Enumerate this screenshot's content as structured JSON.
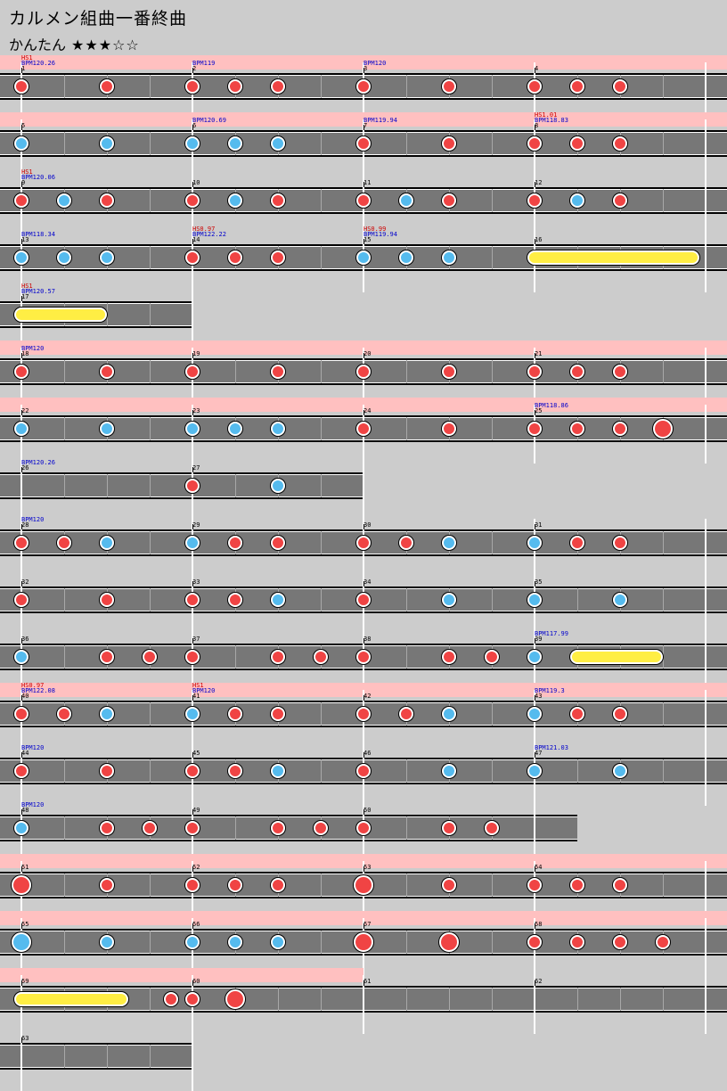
{
  "song": {
    "title": "カルメン組曲一番終曲",
    "difficulty_label": "かんたん",
    "difficulty_stars": "★★★☆☆"
  },
  "colors": {
    "don": "#f04444",
    "ka": "#55bbee",
    "roll": "#ffee44",
    "gogo_band": "#ffc0c0",
    "lane": "#777777",
    "bpm_text": "#0000cc",
    "hs_text": "#cc0000"
  },
  "rows": [
    {
      "measures": 4,
      "gogo": true,
      "markers": [
        {
          "m": 0,
          "num": "1",
          "bpm": "BPM120.26",
          "hs": "HS1"
        },
        {
          "m": 1,
          "num": "2",
          "bpm": "BPM119"
        },
        {
          "m": 2,
          "num": "3",
          "bpm": "BPM120"
        },
        {
          "m": 3,
          "num": "4"
        }
      ],
      "notes": [
        {
          "b": 0,
          "t": "d"
        },
        {
          "b": 2,
          "t": "d"
        },
        {
          "b": 4,
          "t": "d"
        },
        {
          "b": 5,
          "t": "d"
        },
        {
          "b": 6,
          "t": "d"
        },
        {
          "b": 8,
          "t": "d"
        },
        {
          "b": 10,
          "t": "d"
        },
        {
          "b": 12,
          "t": "d"
        },
        {
          "b": 13,
          "t": "d"
        },
        {
          "b": 14,
          "t": "d"
        }
      ]
    },
    {
      "measures": 4,
      "gogo": true,
      "markers": [
        {
          "m": 0,
          "num": "5"
        },
        {
          "m": 1,
          "num": "6",
          "bpm": "BPM120.69"
        },
        {
          "m": 2,
          "num": "7",
          "bpm": "BPM119.94"
        },
        {
          "m": 3,
          "num": "8",
          "bpm": "BPM118.83",
          "hs": "HS1.01"
        }
      ],
      "notes": [
        {
          "b": 0,
          "t": "k"
        },
        {
          "b": 2,
          "t": "k"
        },
        {
          "b": 4,
          "t": "k"
        },
        {
          "b": 5,
          "t": "k"
        },
        {
          "b": 6,
          "t": "k"
        },
        {
          "b": 8,
          "t": "d"
        },
        {
          "b": 10,
          "t": "d"
        },
        {
          "b": 12,
          "t": "d"
        },
        {
          "b": 13,
          "t": "d"
        },
        {
          "b": 14,
          "t": "d"
        }
      ]
    },
    {
      "measures": 4,
      "gogo": false,
      "markers": [
        {
          "m": 0,
          "num": "9",
          "bpm": "BPM120.06",
          "hs": "HS1"
        },
        {
          "m": 1,
          "num": "10"
        },
        {
          "m": 2,
          "num": "11"
        },
        {
          "m": 3,
          "num": "12"
        }
      ],
      "notes": [
        {
          "b": 0,
          "t": "d"
        },
        {
          "b": 1,
          "t": "k"
        },
        {
          "b": 2,
          "t": "d"
        },
        {
          "b": 4,
          "t": "d"
        },
        {
          "b": 5,
          "t": "k"
        },
        {
          "b": 6,
          "t": "d"
        },
        {
          "b": 8,
          "t": "d"
        },
        {
          "b": 9,
          "t": "k"
        },
        {
          "b": 10,
          "t": "d"
        },
        {
          "b": 12,
          "t": "d"
        },
        {
          "b": 13,
          "t": "k"
        },
        {
          "b": 14,
          "t": "d"
        }
      ]
    },
    {
      "measures": 4,
      "gogo": false,
      "markers": [
        {
          "m": 0,
          "num": "13",
          "bpm": "BPM118.34"
        },
        {
          "m": 1,
          "num": "14",
          "bpm": "BPM122.22",
          "hs": "HS0.97"
        },
        {
          "m": 2,
          "num": "15",
          "bpm": "BPM119.94",
          "hs": "HS0.99"
        },
        {
          "m": 3,
          "num": "16"
        }
      ],
      "notes": [
        {
          "b": 0,
          "t": "k"
        },
        {
          "b": 1,
          "t": "k"
        },
        {
          "b": 2,
          "t": "k"
        },
        {
          "b": 4,
          "t": "d"
        },
        {
          "b": 5,
          "t": "d"
        },
        {
          "b": 6,
          "t": "d"
        },
        {
          "b": 8,
          "t": "k"
        },
        {
          "b": 9,
          "t": "k"
        },
        {
          "b": 10,
          "t": "k"
        }
      ],
      "rolls": [
        {
          "start": 12,
          "end": 16
        }
      ]
    },
    {
      "measures": 1,
      "gogo": false,
      "markers": [
        {
          "m": 0,
          "num": "17",
          "bpm": "BPM120.57",
          "hs": "HS1"
        }
      ],
      "notes": [],
      "rolls": [
        {
          "start": 0,
          "end": 2
        }
      ]
    },
    {
      "measures": 4,
      "gogo": true,
      "markers": [
        {
          "m": 0,
          "num": "18",
          "bpm": "BPM120"
        },
        {
          "m": 1,
          "num": "19"
        },
        {
          "m": 2,
          "num": "20"
        },
        {
          "m": 3,
          "num": "21"
        }
      ],
      "notes": [
        {
          "b": 0,
          "t": "d"
        },
        {
          "b": 2,
          "t": "d"
        },
        {
          "b": 4,
          "t": "d"
        },
        {
          "b": 6,
          "t": "d"
        },
        {
          "b": 8,
          "t": "d"
        },
        {
          "b": 10,
          "t": "d"
        },
        {
          "b": 12,
          "t": "d"
        },
        {
          "b": 13,
          "t": "d"
        },
        {
          "b": 14,
          "t": "d"
        }
      ]
    },
    {
      "measures": 4,
      "gogo": true,
      "markers": [
        {
          "m": 0,
          "num": "22"
        },
        {
          "m": 1,
          "num": "23"
        },
        {
          "m": 2,
          "num": "24"
        },
        {
          "m": 3,
          "num": "25",
          "bpm": "BPM118.86"
        }
      ],
      "notes": [
        {
          "b": 0,
          "t": "k"
        },
        {
          "b": 2,
          "t": "k"
        },
        {
          "b": 4,
          "t": "k"
        },
        {
          "b": 5,
          "t": "k"
        },
        {
          "b": 6,
          "t": "k"
        },
        {
          "b": 8,
          "t": "d"
        },
        {
          "b": 10,
          "t": "d"
        },
        {
          "b": 12,
          "t": "d"
        },
        {
          "b": 13,
          "t": "d"
        },
        {
          "b": 14,
          "t": "d"
        },
        {
          "b": 15,
          "t": "D"
        }
      ]
    },
    {
      "measures": 2,
      "gogo": false,
      "markers": [
        {
          "m": 0,
          "num": "26",
          "bpm": "BPM120.26"
        },
        {
          "m": 1,
          "num": "27"
        }
      ],
      "notes": [
        {
          "b": 4,
          "t": "d"
        },
        {
          "b": 6,
          "t": "k"
        }
      ]
    },
    {
      "measures": 4,
      "gogo": false,
      "markers": [
        {
          "m": 0,
          "num": "28",
          "bpm": "BPM120"
        },
        {
          "m": 1,
          "num": "29"
        },
        {
          "m": 2,
          "num": "30"
        },
        {
          "m": 3,
          "num": "31"
        }
      ],
      "notes": [
        {
          "b": 0,
          "t": "d"
        },
        {
          "b": 1,
          "t": "d"
        },
        {
          "b": 2,
          "t": "k"
        },
        {
          "b": 4,
          "t": "k"
        },
        {
          "b": 5,
          "t": "d"
        },
        {
          "b": 6,
          "t": "d"
        },
        {
          "b": 8,
          "t": "d"
        },
        {
          "b": 9,
          "t": "d"
        },
        {
          "b": 10,
          "t": "k"
        },
        {
          "b": 12,
          "t": "k"
        },
        {
          "b": 13,
          "t": "d"
        },
        {
          "b": 14,
          "t": "d"
        }
      ]
    },
    {
      "measures": 4,
      "gogo": false,
      "markers": [
        {
          "m": 0,
          "num": "32"
        },
        {
          "m": 1,
          "num": "33"
        },
        {
          "m": 2,
          "num": "34"
        },
        {
          "m": 3,
          "num": "35"
        }
      ],
      "notes": [
        {
          "b": 0,
          "t": "d"
        },
        {
          "b": 2,
          "t": "d"
        },
        {
          "b": 4,
          "t": "d"
        },
        {
          "b": 5,
          "t": "d"
        },
        {
          "b": 6,
          "t": "k"
        },
        {
          "b": 8,
          "t": "d"
        },
        {
          "b": 10,
          "t": "k"
        },
        {
          "b": 12,
          "t": "k"
        },
        {
          "b": 14,
          "t": "k"
        }
      ]
    },
    {
      "measures": 4,
      "gogo": false,
      "markers": [
        {
          "m": 0,
          "num": "36"
        },
        {
          "m": 1,
          "num": "37"
        },
        {
          "m": 2,
          "num": "38"
        },
        {
          "m": 3,
          "num": "39",
          "bpm": "BPM117.99"
        }
      ],
      "notes": [
        {
          "b": 0,
          "t": "k"
        },
        {
          "b": 2,
          "t": "d"
        },
        {
          "b": 3,
          "t": "d"
        },
        {
          "b": 4,
          "t": "d"
        },
        {
          "b": 6,
          "t": "d"
        },
        {
          "b": 7,
          "t": "d"
        },
        {
          "b": 8,
          "t": "d"
        },
        {
          "b": 10,
          "t": "d"
        },
        {
          "b": 11,
          "t": "d"
        },
        {
          "b": 12,
          "t": "k"
        }
      ],
      "rolls": [
        {
          "start": 13,
          "end": 15
        }
      ]
    },
    {
      "measures": 4,
      "gogo": true,
      "markers": [
        {
          "m": 0,
          "num": "40",
          "bpm": "BPM122.08",
          "hs": "HS0.97"
        },
        {
          "m": 1,
          "num": "41",
          "bpm": "BPM120",
          "hs": "HS1"
        },
        {
          "m": 2,
          "num": "42"
        },
        {
          "m": 3,
          "num": "43",
          "bpm": "BPM119.3"
        }
      ],
      "notes": [
        {
          "b": 0,
          "t": "d"
        },
        {
          "b": 1,
          "t": "d"
        },
        {
          "b": 2,
          "t": "k"
        },
        {
          "b": 4,
          "t": "k"
        },
        {
          "b": 5,
          "t": "d"
        },
        {
          "b": 6,
          "t": "d"
        },
        {
          "b": 8,
          "t": "d"
        },
        {
          "b": 9,
          "t": "d"
        },
        {
          "b": 10,
          "t": "k"
        },
        {
          "b": 12,
          "t": "k"
        },
        {
          "b": 13,
          "t": "d"
        },
        {
          "b": 14,
          "t": "d"
        }
      ]
    },
    {
      "measures": 4,
      "gogo": false,
      "markers": [
        {
          "m": 0,
          "num": "44",
          "bpm": "BPM120"
        },
        {
          "m": 1,
          "num": "45"
        },
        {
          "m": 2,
          "num": "46"
        },
        {
          "m": 3,
          "num": "47",
          "bpm": "BPM121.03"
        }
      ],
      "notes": [
        {
          "b": 0,
          "t": "d"
        },
        {
          "b": 2,
          "t": "d"
        },
        {
          "b": 4,
          "t": "d"
        },
        {
          "b": 5,
          "t": "d"
        },
        {
          "b": 6,
          "t": "k"
        },
        {
          "b": 8,
          "t": "d"
        },
        {
          "b": 10,
          "t": "k"
        },
        {
          "b": 12,
          "t": "k"
        },
        {
          "b": 14,
          "t": "k"
        }
      ]
    },
    {
      "measures": 3.25,
      "gogo": false,
      "markers": [
        {
          "m": 0,
          "num": "48",
          "bpm": "BPM120"
        },
        {
          "m": 1,
          "num": "49"
        },
        {
          "m": 2,
          "num": "50"
        }
      ],
      "notes": [
        {
          "b": 0,
          "t": "k"
        },
        {
          "b": 2,
          "t": "d"
        },
        {
          "b": 3,
          "t": "d"
        },
        {
          "b": 4,
          "t": "d"
        },
        {
          "b": 6,
          "t": "d"
        },
        {
          "b": 7,
          "t": "d"
        },
        {
          "b": 8,
          "t": "d"
        },
        {
          "b": 10,
          "t": "d"
        },
        {
          "b": 11,
          "t": "d"
        }
      ]
    },
    {
      "measures": 4,
      "gogo": true,
      "markers": [
        {
          "m": 0,
          "num": "51"
        },
        {
          "m": 1,
          "num": "52"
        },
        {
          "m": 2,
          "num": "53"
        },
        {
          "m": 3,
          "num": "54"
        }
      ],
      "notes": [
        {
          "b": 0,
          "t": "D"
        },
        {
          "b": 2,
          "t": "d"
        },
        {
          "b": 4,
          "t": "d"
        },
        {
          "b": 5,
          "t": "d"
        },
        {
          "b": 6,
          "t": "d"
        },
        {
          "b": 8,
          "t": "D"
        },
        {
          "b": 10,
          "t": "d"
        },
        {
          "b": 12,
          "t": "d"
        },
        {
          "b": 13,
          "t": "d"
        },
        {
          "b": 14,
          "t": "d"
        }
      ]
    },
    {
      "measures": 4,
      "gogo": true,
      "markers": [
        {
          "m": 0,
          "num": "55"
        },
        {
          "m": 1,
          "num": "56"
        },
        {
          "m": 2,
          "num": "57"
        },
        {
          "m": 3,
          "num": "58"
        }
      ],
      "notes": [
        {
          "b": 0,
          "t": "K"
        },
        {
          "b": 2,
          "t": "k"
        },
        {
          "b": 4,
          "t": "k"
        },
        {
          "b": 5,
          "t": "k"
        },
        {
          "b": 6,
          "t": "k"
        },
        {
          "b": 8,
          "t": "D"
        },
        {
          "b": 10,
          "t": "D"
        },
        {
          "b": 12,
          "t": "d"
        },
        {
          "b": 13,
          "t": "d"
        },
        {
          "b": 14,
          "t": "d"
        },
        {
          "b": 15,
          "t": "d"
        }
      ]
    },
    {
      "measures": 4,
      "gogo": true,
      "gogoMeasures": 2,
      "markers": [
        {
          "m": 0,
          "num": "59"
        },
        {
          "m": 1,
          "num": "60"
        },
        {
          "m": 2,
          "num": "61"
        },
        {
          "m": 3,
          "num": "62"
        }
      ],
      "notes": [
        {
          "b": 3.5,
          "t": "d"
        },
        {
          "b": 4,
          "t": "d"
        },
        {
          "b": 5,
          "t": "D"
        }
      ],
      "rolls": [
        {
          "start": 0,
          "end": 2.5
        }
      ]
    },
    {
      "measures": 1,
      "gogo": false,
      "markers": [
        {
          "m": 0,
          "num": "63"
        }
      ],
      "notes": []
    }
  ]
}
